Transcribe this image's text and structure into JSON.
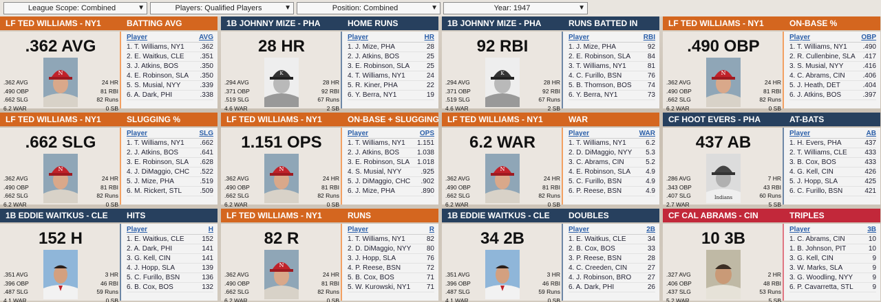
{
  "filters": [
    {
      "label": "League Scope: Combined"
    },
    {
      "label": "Players: Qualified Players"
    },
    {
      "label": "Position: Combined"
    },
    {
      "label": "Year: 1947"
    }
  ],
  "cards": [
    {
      "player": "LF TED WILLIAMS - NY1",
      "cat": "BATTING AVG",
      "big": ".362 AVG",
      "lc": "o",
      "rc": "o",
      "photo": "ted",
      "sl": [
        ".362 AVG",
        ".490 OBP",
        ".662 SLG",
        "6.2 WAR"
      ],
      "sr": [
        "24 HR",
        "81 RBI",
        "82 Runs",
        "0 SB"
      ],
      "col": "AVG",
      "rows": [
        [
          "1. T. Williams, NY1",
          ".362"
        ],
        [
          "2. E. Waitkus, CLE",
          ".351"
        ],
        [
          "3. J. Atkins, BOS",
          ".350"
        ],
        [
          "4. E. Robinson, SLA",
          ".350"
        ],
        [
          "5. S. Musial, NYY",
          ".339"
        ],
        [
          "6. A. Dark, PHI",
          ".338"
        ]
      ]
    },
    {
      "player": "1B JOHNNY MIZE - PHA",
      "cat": "HOME RUNS",
      "big": "28 HR",
      "lc": "n",
      "rc": "n",
      "photo": "mize",
      "sl": [
        ".294 AVG",
        ".371 OBP",
        ".519 SLG",
        "4.6 WAR"
      ],
      "sr": [
        "28 HR",
        "92 RBI",
        "67 Runs",
        "2 SB"
      ],
      "col": "HR",
      "rows": [
        [
          "1. J. Mize, PHA",
          "28"
        ],
        [
          "2. J. Atkins, BOS",
          "25"
        ],
        [
          "3. E. Robinson, SLA",
          "25"
        ],
        [
          "4. T. Williams, NY1",
          "24"
        ],
        [
          "5. R. Kiner, PHA",
          "22"
        ],
        [
          "6. Y. Berra, NY1",
          "19"
        ]
      ]
    },
    {
      "player": "1B JOHNNY MIZE - PHA",
      "cat": "RUNS BATTED IN",
      "big": "92 RBI",
      "lc": "n",
      "rc": "n",
      "photo": "mize",
      "sl": [
        ".294 AVG",
        ".371 OBP",
        ".519 SLG",
        "4.6 WAR"
      ],
      "sr": [
        "28 HR",
        "92 RBI",
        "67 Runs",
        "2 SB"
      ],
      "col": "RBI",
      "rows": [
        [
          "1. J. Mize, PHA",
          "92"
        ],
        [
          "2. E. Robinson, SLA",
          "84"
        ],
        [
          "3. T. Williams, NY1",
          "81"
        ],
        [
          "4. C. Furillo, BSN",
          "76"
        ],
        [
          "5. B. Thomson, BOS",
          "74"
        ],
        [
          "6. Y. Berra, NY1",
          "73"
        ]
      ]
    },
    {
      "player": "LF TED WILLIAMS - NY1",
      "cat": "ON-BASE %",
      "big": ".490 OBP",
      "lc": "o",
      "rc": "o",
      "photo": "ted",
      "sl": [
        ".362 AVG",
        ".490 OBP",
        ".662 SLG",
        "6.2 WAR"
      ],
      "sr": [
        "24 HR",
        "81 RBI",
        "82 Runs",
        "0 SB"
      ],
      "col": "OBP",
      "rows": [
        [
          "1. T. Williams, NY1",
          ".490"
        ],
        [
          "2. R. Cullenbine, SLA",
          ".417"
        ],
        [
          "3. S. Musial, NYY",
          ".416"
        ],
        [
          "4. C. Abrams, CIN",
          ".406"
        ],
        [
          "5. J. Heath, DET",
          ".404"
        ],
        [
          "6. J. Atkins, BOS",
          ".397"
        ]
      ]
    },
    {
      "player": "LF TED WILLIAMS - NY1",
      "cat": "SLUGGING %",
      "big": ".662 SLG",
      "lc": "o",
      "rc": "o",
      "photo": "ted",
      "sl": [
        ".362 AVG",
        ".490 OBP",
        ".662 SLG",
        "6.2 WAR"
      ],
      "sr": [
        "24 HR",
        "81 RBI",
        "82 Runs",
        "0 SB"
      ],
      "col": "SLG",
      "rows": [
        [
          "1. T. Williams, NY1",
          ".662"
        ],
        [
          "2. J. Atkins, BOS",
          ".641"
        ],
        [
          "3. E. Robinson, SLA",
          ".628"
        ],
        [
          "4. J. DiMaggio, CHC",
          ".522"
        ],
        [
          "5. J. Mize, PHA",
          ".519"
        ],
        [
          "6. M. Rickert, STL",
          ".509"
        ]
      ]
    },
    {
      "player": "LF TED WILLIAMS - NY1",
      "cat": "ON-BASE + SLUGGING",
      "big": "1.151 OPS",
      "lc": "o",
      "rc": "o",
      "photo": "ted",
      "sl": [
        ".362 AVG",
        ".490 OBP",
        ".662 SLG",
        "6.2 WAR"
      ],
      "sr": [
        "24 HR",
        "81 RBI",
        "82 Runs",
        "0 SB"
      ],
      "col": "OPS",
      "rows": [
        [
          "1. T. Williams, NY1",
          "1.151"
        ],
        [
          "2. J. Atkins, BOS",
          "1.038"
        ],
        [
          "3. E. Robinson, SLA",
          "1.018"
        ],
        [
          "4. S. Musial, NYY",
          ".925"
        ],
        [
          "5. J. DiMaggio, CHC",
          ".902"
        ],
        [
          "6. J. Mize, PHA",
          ".890"
        ]
      ]
    },
    {
      "player": "LF TED WILLIAMS - NY1",
      "cat": "WAR",
      "big": "6.2 WAR",
      "lc": "o",
      "rc": "o",
      "photo": "ted",
      "sl": [
        ".362 AVG",
        ".490 OBP",
        ".662 SLG",
        "6.2 WAR"
      ],
      "sr": [
        "24 HR",
        "81 RBI",
        "82 Runs",
        "0 SB"
      ],
      "col": "WAR",
      "rows": [
        [
          "1. T. Williams, NY1",
          "6.2"
        ],
        [
          "2. D. DiMaggio, NYY",
          "5.3"
        ],
        [
          "3. C. Abrams, CIN",
          "5.2"
        ],
        [
          "4. E. Robinson, SLA",
          "4.9"
        ],
        [
          "5. C. Furillo, BSN",
          "4.9"
        ],
        [
          "6. P. Reese, BSN",
          "4.9"
        ]
      ]
    },
    {
      "player": "CF HOOT EVERS - PHA",
      "cat": "AT-BATS",
      "big": "437 AB",
      "lc": "n",
      "rc": "n",
      "photo": "evers",
      "sl": [
        ".286 AVG",
        ".343 OBP",
        ".407 SLG",
        "2.7 WAR"
      ],
      "sr": [
        "7 HR",
        "43 RBI",
        "60 Runs",
        "5 SB"
      ],
      "col": "AB",
      "rows": [
        [
          "1. H. Evers, PHA",
          "437"
        ],
        [
          "2. T. Williams, CLE",
          "433"
        ],
        [
          "3. B. Cox, BOS",
          "433"
        ],
        [
          "4. G. Kell, CIN",
          "426"
        ],
        [
          "5. J. Hopp, SLA",
          "425"
        ],
        [
          "6. C. Furillo, BSN",
          "421"
        ]
      ]
    },
    {
      "player": "1B EDDIE WAITKUS - CLE",
      "cat": "HITS",
      "big": "152 H",
      "lc": "n",
      "rc": "n",
      "photo": "waitkus",
      "sl": [
        ".351 AVG",
        ".396 OBP",
        ".487 SLG",
        "4.1 WAR"
      ],
      "sr": [
        "3 HR",
        "46 RBI",
        "59 Runs",
        "0 SB"
      ],
      "col": "H",
      "rows": [
        [
          "1. E. Waitkus, CLE",
          "152"
        ],
        [
          "2. A. Dark, PHI",
          "141"
        ],
        [
          "3. G. Kell, CIN",
          "141"
        ],
        [
          "4. J. Hopp, SLA",
          "139"
        ],
        [
          "5. C. Furillo, BSN",
          "136"
        ],
        [
          "6. B. Cox, BOS",
          "132"
        ]
      ]
    },
    {
      "player": "LF TED WILLIAMS - NY1",
      "cat": "RUNS",
      "big": "82 R",
      "lc": "o",
      "rc": "o",
      "photo": "ted",
      "sl": [
        ".362 AVG",
        ".490 OBP",
        ".662 SLG",
        "6.2 WAR"
      ],
      "sr": [
        "24 HR",
        "81 RBI",
        "82 Runs",
        "0 SB"
      ],
      "col": "R",
      "rows": [
        [
          "1. T. Williams, NY1",
          "82"
        ],
        [
          "2. D. DiMaggio, NYY",
          "80"
        ],
        [
          "3. J. Hopp, SLA",
          "76"
        ],
        [
          "4. P. Reese, BSN",
          "72"
        ],
        [
          "5. B. Cox, BOS",
          "71"
        ],
        [
          "5. W. Kurowski, NY1",
          "71"
        ]
      ]
    },
    {
      "player": "1B EDDIE WAITKUS - CLE",
      "cat": "DOUBLES",
      "big": "34 2B",
      "lc": "n",
      "rc": "n",
      "photo": "waitkus",
      "sl": [
        ".351 AVG",
        ".396 OBP",
        ".487 SLG",
        "4.1 WAR"
      ],
      "sr": [
        "3 HR",
        "46 RBI",
        "59 Runs",
        "0 SB"
      ],
      "col": "2B",
      "rows": [
        [
          "1. E. Waitkus, CLE",
          "34"
        ],
        [
          "2. B. Cox, BOS",
          "33"
        ],
        [
          "3. P. Reese, BSN",
          "28"
        ],
        [
          "4. C. Creeden, CIN",
          "27"
        ],
        [
          "4. J. Robinson, BRO",
          "27"
        ],
        [
          "6. A. Dark, PHI",
          "26"
        ]
      ]
    },
    {
      "player": "CF CAL ABRAMS - CIN",
      "cat": "TRIPLES",
      "big": "10 3B",
      "lc": "r",
      "rc": "r",
      "photo": "abrams",
      "sl": [
        ".327 AVG",
        ".406 OBP",
        ".437 SLG",
        "5.2 WAR"
      ],
      "sr": [
        "2 HR",
        "48 RBI",
        "53 Runs",
        "5 SB"
      ],
      "col": "3B",
      "rows": [
        [
          "1. C. Abrams, CIN",
          "10"
        ],
        [
          "1. B. Johnson, PIT",
          "10"
        ],
        [
          "3. G. Kell, CIN",
          "9"
        ],
        [
          "3. W. Marks, SLA",
          "9"
        ],
        [
          "3. G. Woodling, NYY",
          "9"
        ],
        [
          "6. P. Cavarretta, STL",
          "9"
        ]
      ]
    }
  ],
  "player_col_label": "Player"
}
